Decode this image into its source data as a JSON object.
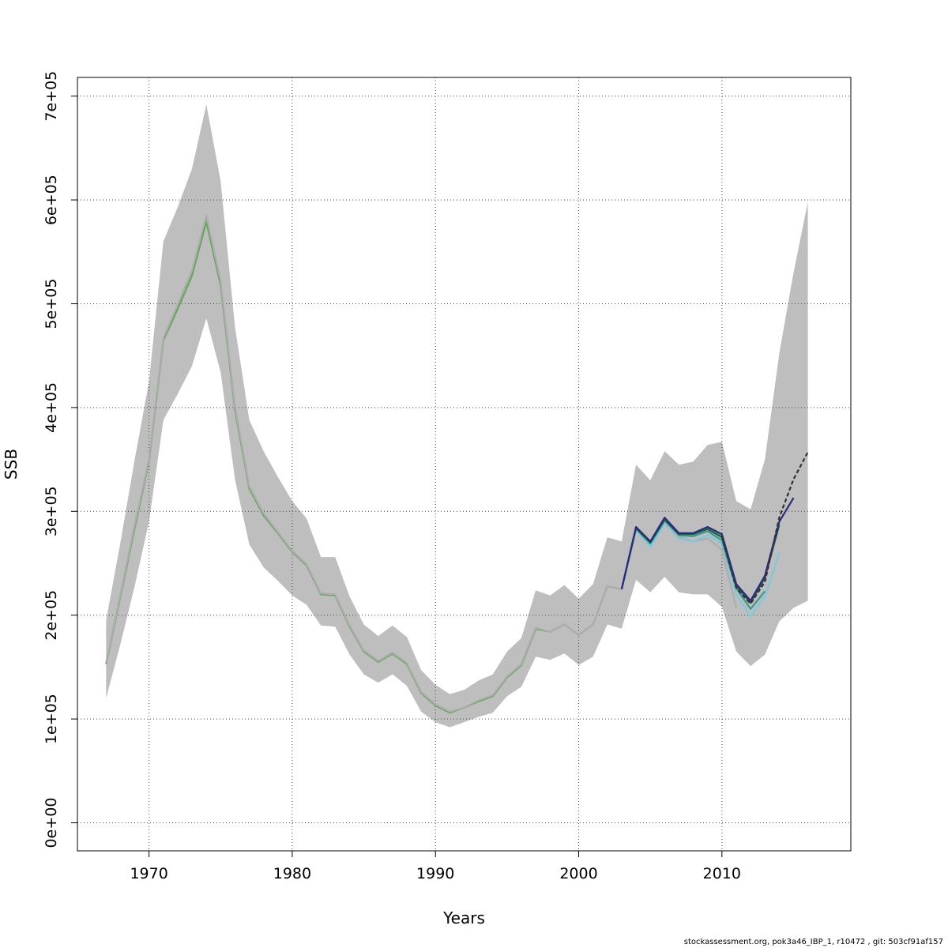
{
  "chart_data": {
    "type": "line",
    "xlabel": "Years",
    "ylabel": "SSB",
    "xlim": [
      1965,
      2019
    ],
    "ylim": [
      -27000,
      718000
    ],
    "x_ticks": [
      1970,
      1980,
      1990,
      2000,
      2010
    ],
    "x_tick_labels": [
      "1970",
      "1980",
      "1990",
      "2000",
      "2010"
    ],
    "y_ticks": [
      0,
      100000,
      200000,
      300000,
      400000,
      500000,
      600000,
      700000
    ],
    "y_tick_labels": [
      "0e+00",
      "1e+05",
      "2e+05",
      "3e+05",
      "4e+05",
      "5e+05",
      "6e+05",
      "7e+05"
    ],
    "grid": true,
    "band": {
      "color": "#bebebe",
      "x": [
        1967,
        1968,
        1969,
        1970,
        1971,
        1972,
        1973,
        1974,
        1975,
        1976,
        1977,
        1978,
        1979,
        1980,
        1981,
        1982,
        1983,
        1984,
        1985,
        1986,
        1987,
        1988,
        1989,
        1990,
        1991,
        1992,
        1993,
        1994,
        1995,
        1996,
        1997,
        1998,
        1999,
        2000,
        2001,
        2002,
        2003,
        2004,
        2005,
        2006,
        2007,
        2008,
        2009,
        2010,
        2011,
        2012,
        2013,
        2014,
        2015,
        2016
      ],
      "upper": [
        195000,
        270000,
        350000,
        425000,
        560000,
        593000,
        630000,
        692000,
        618000,
        478000,
        388000,
        358000,
        333000,
        310000,
        293000,
        256000,
        256000,
        218000,
        191000,
        180000,
        190000,
        179000,
        147000,
        133000,
        124000,
        128000,
        137000,
        143000,
        165000,
        178000,
        224000,
        219000,
        229000,
        216000,
        230000,
        275000,
        271000,
        345000,
        330000,
        358000,
        345000,
        348000,
        364000,
        367000,
        310000,
        302000,
        350000,
        452000,
        530000,
        598000
      ],
      "lower": [
        120000,
        172000,
        228000,
        290000,
        388000,
        413000,
        440000,
        486000,
        434000,
        331000,
        268000,
        246000,
        233000,
        219000,
        210000,
        190000,
        189000,
        162000,
        143000,
        135000,
        143000,
        132000,
        107000,
        97000,
        92000,
        97000,
        102000,
        106000,
        122000,
        131000,
        160000,
        157000,
        163000,
        152000,
        160000,
        191000,
        187000,
        234000,
        222000,
        237000,
        222000,
        220000,
        220000,
        208000,
        165000,
        151000,
        162000,
        194000,
        207000,
        214000
      ]
    },
    "series": [
      {
        "color": "#5fa854",
        "x": [
          1967,
          1968,
          1969,
          1970,
          1971,
          1972,
          1973,
          1974,
          1975,
          1976,
          1977,
          1978,
          1979,
          1980,
          1981,
          1982,
          1983,
          1984,
          1985,
          1986,
          1987,
          1988,
          1989,
          1990,
          1991,
          1992,
          1993,
          1994,
          1995,
          1996,
          1997,
          1998,
          1999,
          2000,
          2001,
          2002,
          2003,
          2004,
          2005,
          2006,
          2007,
          2008,
          2009,
          2010
        ],
        "values": [
          153000,
          218000,
          284000,
          348000,
          465000,
          495000,
          527000,
          579000,
          518000,
          398000,
          322000,
          296000,
          279000,
          261000,
          248000,
          220000,
          219000,
          189000,
          165000,
          155000,
          163000,
          153000,
          125000,
          113000,
          106000,
          111000,
          117000,
          122000,
          140000,
          152000,
          187000,
          184000,
          191000,
          181000,
          191000,
          228000,
          225000,
          284000,
          271000,
          293000,
          279000,
          278000,
          284000,
          276000
        ]
      },
      {
        "color": "#ADADAD",
        "x": [
          1967,
          1968,
          1969,
          1970,
          1971,
          1972,
          1973,
          1974,
          1975,
          1976,
          1977,
          1978,
          1979,
          1980,
          1981,
          1982,
          1983,
          1984,
          1985,
          1986,
          1987,
          1988,
          1989,
          1990,
          1991,
          1992,
          1993,
          1994,
          1995,
          1996,
          1997,
          1998,
          1999,
          2000,
          2001,
          2002,
          2003,
          2004,
          2005,
          2006,
          2007,
          2008,
          2009,
          2010,
          2011
        ],
        "values": [
          154000,
          220000,
          287000,
          350000,
          467000,
          499000,
          532000,
          585000,
          522000,
          401000,
          324000,
          298000,
          280000,
          262000,
          249000,
          221000,
          220000,
          190000,
          166000,
          156000,
          164000,
          154000,
          126000,
          114000,
          107000,
          111000,
          118000,
          123000,
          141000,
          153000,
          188000,
          184000,
          191000,
          181000,
          191000,
          228000,
          225000,
          285000,
          271000,
          293000,
          276000,
          271000,
          274000,
          263000,
          207000
        ]
      },
      {
        "color": "#7ec8dc",
        "x": [
          2003,
          2004,
          2005,
          2006,
          2007,
          2008,
          2009,
          2010,
          2011,
          2012,
          2013,
          2014
        ],
        "values": [
          225000,
          282000,
          266000,
          288000,
          274000,
          271000,
          277000,
          269000,
          220000,
          199000,
          218000,
          260000
        ]
      },
      {
        "color": "#3a9a8a",
        "x": [
          2003,
          2004,
          2005,
          2006,
          2007,
          2008,
          2009,
          2010,
          2011,
          2012,
          2013
        ],
        "values": [
          225000,
          283000,
          269000,
          291000,
          277000,
          276000,
          281000,
          272000,
          226000,
          206000,
          223000
        ]
      },
      {
        "color": "#1f5f4c",
        "x": [
          2003,
          2004,
          2005,
          2006,
          2007,
          2008,
          2009,
          2010,
          2011,
          2012,
          2013,
          2014
        ],
        "values": [
          225000,
          284000,
          270000,
          292000,
          278000,
          278000,
          283000,
          275000,
          228000,
          212000,
          236000,
          287000
        ]
      },
      {
        "color": "#2c2a7e",
        "x": [
          2003,
          2004,
          2005,
          2006,
          2007,
          2008,
          2009,
          2010,
          2011,
          2012,
          2013,
          2014,
          2015
        ],
        "values": [
          225000,
          285000,
          271000,
          294000,
          279000,
          279000,
          285000,
          278000,
          230000,
          214000,
          238000,
          290000,
          313000
        ]
      },
      {
        "color": "#333333",
        "dashed": true,
        "x": [
          2010,
          2011,
          2012,
          2013,
          2014,
          2015,
          2016
        ],
        "values": [
          276000,
          226000,
          211000,
          232000,
          294000,
          331000,
          357000
        ]
      }
    ]
  },
  "footer": "stockassessment.org, pok3a46_IBP_1, r10472 , git: 503cf91af157"
}
